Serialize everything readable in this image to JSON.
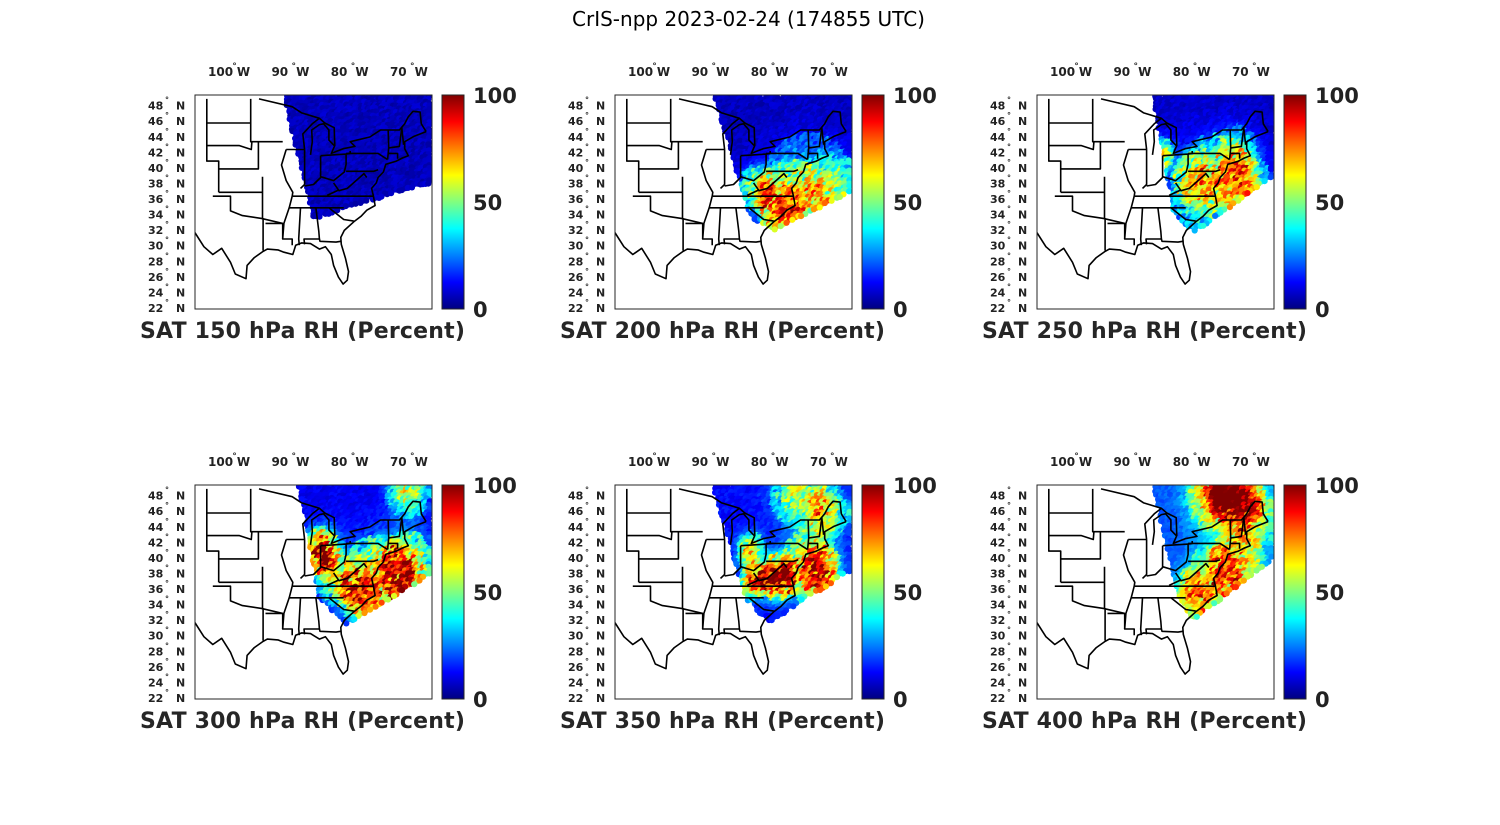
{
  "title": "CrIS-npp 2023-02-24 (174855 UTC)",
  "lon_labels": [
    "100",
    "90",
    "80",
    "70"
  ],
  "lon_suffix": "W",
  "lat_labels": [
    "48",
    "46",
    "44",
    "42",
    "40",
    "38",
    "36",
    "34",
    "32",
    "30",
    "28",
    "26",
    "24",
    "22"
  ],
  "lat_suffix": "N",
  "degree_symbol": "°",
  "colorbar": {
    "ticks": [
      "100",
      "50",
      "0"
    ],
    "min": 0,
    "max": 100
  },
  "map_extent": {
    "lon_min": -106,
    "lon_max": -66,
    "lat_min": 22,
    "lat_max": 49.5
  },
  "colormap": "jet",
  "panels": [
    {
      "caption": "SAT 150 hPa RH (Percent)",
      "level_hPa": 150
    },
    {
      "caption": "SAT 200 hPa RH (Percent)",
      "level_hPa": 200
    },
    {
      "caption": "SAT 250 hPa RH (Percent)",
      "level_hPa": 250
    },
    {
      "caption": "SAT 300 hPa RH (Percent)",
      "level_hPa": 300
    },
    {
      "caption": "SAT 350 hPa RH (Percent)",
      "level_hPa": 350
    },
    {
      "caption": "SAT 400 hPa RH (Percent)",
      "level_hPa": 400
    }
  ]
}
